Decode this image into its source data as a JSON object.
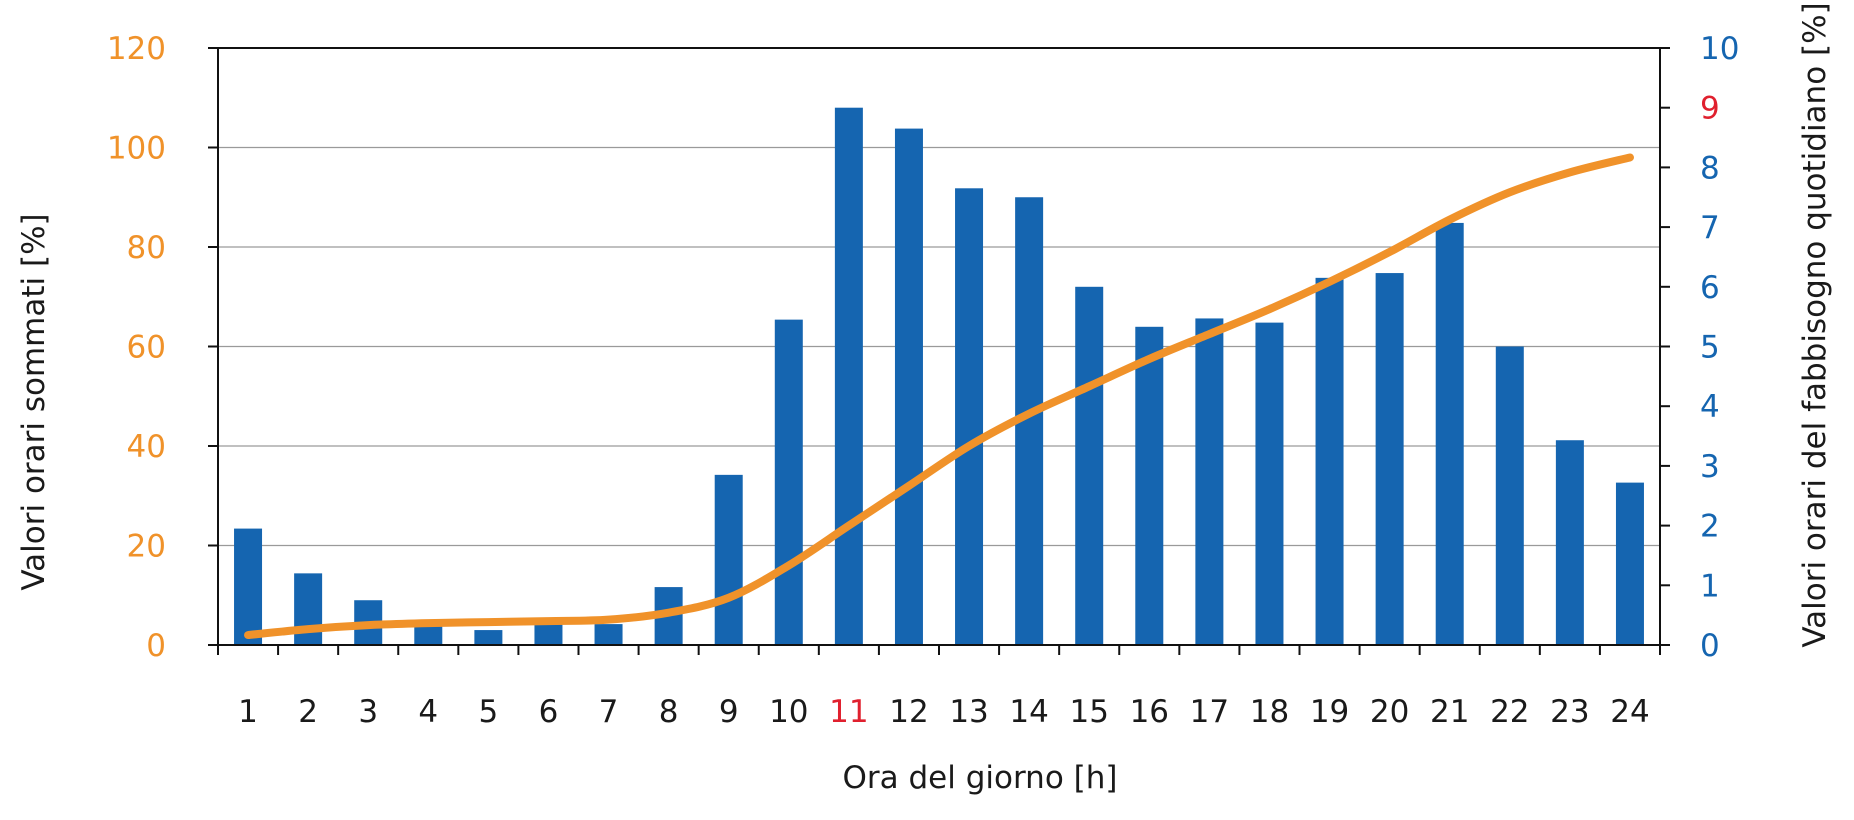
{
  "chart_data": {
    "type": "bar",
    "title": "",
    "xlabel": "Ora del giorno [h]",
    "ylabel_left": "Valori orari sommati [%]",
    "ylabel_right": "Valori orari del fabbisogno quotidiano [%]",
    "categories": [
      "1",
      "2",
      "3",
      "4",
      "5",
      "6",
      "7",
      "8",
      "9",
      "10",
      "11",
      "12",
      "13",
      "14",
      "15",
      "16",
      "17",
      "18",
      "19",
      "20",
      "21",
      "22",
      "23",
      "24"
    ],
    "highlight_category": "11",
    "ylim_left": [
      0,
      120
    ],
    "yticks_left": [
      0,
      20,
      40,
      60,
      80,
      100,
      120
    ],
    "ylim_right": [
      0,
      10
    ],
    "yticks_right": [
      0,
      1,
      2,
      3,
      4,
      5,
      6,
      7,
      8,
      9,
      10
    ],
    "highlight_right_tick": 9,
    "grid": true,
    "series": [
      {
        "type": "bar",
        "axis": "right",
        "values": [
          1.95,
          1.2,
          0.75,
          0.4,
          0.25,
          0.4,
          0.35,
          0.97,
          2.85,
          5.45,
          9.0,
          8.65,
          7.65,
          7.5,
          6.0,
          5.33,
          5.47,
          5.4,
          6.15,
          6.23,
          7.07,
          5.0,
          3.43,
          2.72
        ],
        "color": "#1565b0"
      },
      {
        "type": "line",
        "axis": "left",
        "values": [
          2.0,
          3.2,
          4.0,
          4.4,
          4.6,
          4.8,
          5.1,
          6.5,
          9.5,
          16.0,
          24.0,
          32.0,
          40.0,
          46.5,
          52.0,
          57.5,
          62.5,
          67.5,
          73.0,
          79.0,
          85.5,
          91.0,
          95.0,
          98.0
        ],
        "color": "#f0922a"
      }
    ],
    "colors": {
      "left_axis": "#f0922a",
      "right_axis": "#1565b0",
      "highlight": "#e0202e",
      "gridline": "#9a9a9a",
      "axis_line": "#111111",
      "tick_label": "#1a1a1a"
    }
  }
}
